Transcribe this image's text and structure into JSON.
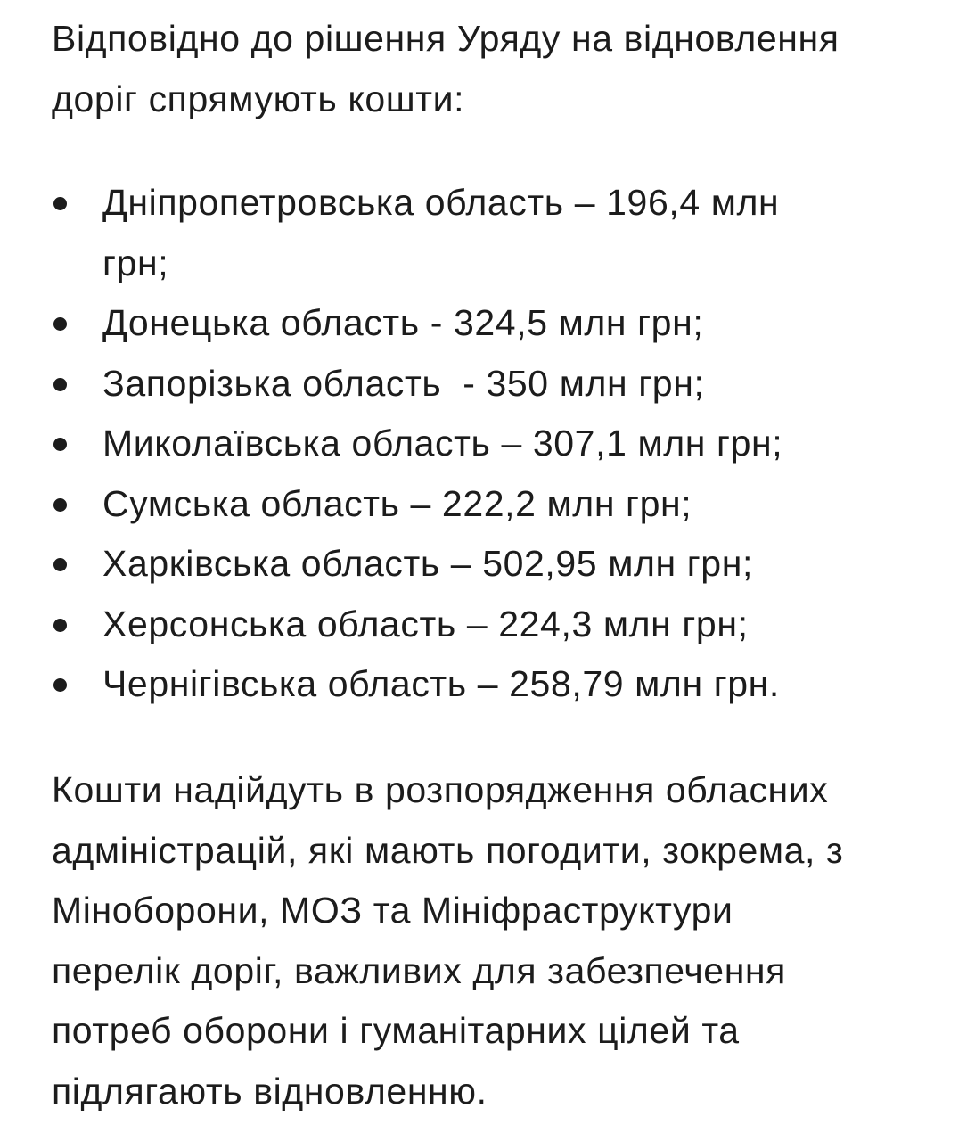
{
  "intro": {
    "lines": [
      "Відповідно до рішення Уряду на відновлення",
      "доріг спрямують кошти:"
    ]
  },
  "allocations": [
    {
      "lines": [
        "Дніпропетровська область – 196,4 млн",
        "грн;"
      ]
    },
    {
      "lines": [
        "Донецька область - 324,5 млн грн;"
      ]
    },
    {
      "lines": [
        "Запорізька область  - 350 млн грн;"
      ]
    },
    {
      "lines": [
        "Миколаївська область – 307,1 млн грн;"
      ]
    },
    {
      "lines": [
        "Сумська область – 222,2 млн грн;"
      ]
    },
    {
      "lines": [
        "Харківська область – 502,95 млн грн;"
      ]
    },
    {
      "lines": [
        "Херсонська область – 224,3 млн грн;"
      ]
    },
    {
      "lines": [
        "Чернігівська область – 258,79 млн грн."
      ]
    }
  ],
  "conclusion": {
    "lines": [
      "Кошти надійдуть в розпорядження обласних",
      "адміністрацій, які мають погодити, зокрема, з",
      "Міноборони, МОЗ та Мініфраструктури",
      "перелік доріг, важливих для забезпечення",
      "потреб оборони і гуманітарних цілей та",
      "підлягають відновленню."
    ]
  }
}
